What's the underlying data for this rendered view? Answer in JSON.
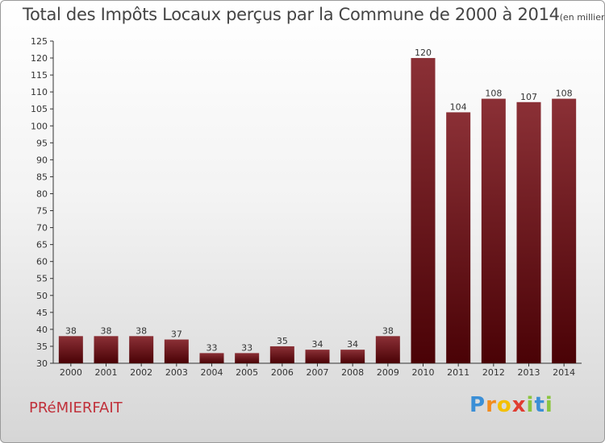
{
  "title": "Total des Impôts Locaux perçus par la Commune de 2000 à 2014",
  "title_unit": "(en milliers d'€)",
  "commune": "PRéMIERFAIT",
  "logo": [
    "P",
    "r",
    "o",
    "x",
    "i",
    "t",
    "i"
  ],
  "colors": {
    "bar_top": "#8b3036",
    "bar_bottom": "#4a0206",
    "commune_text": "#c0303a"
  },
  "chart_data": {
    "type": "bar",
    "title": "Total des Impôts Locaux perçus par la Commune de 2000 à 2014",
    "xlabel": "",
    "ylabel": "",
    "categories": [
      "2000",
      "2001",
      "2002",
      "2003",
      "2004",
      "2005",
      "2006",
      "2007",
      "2008",
      "2009",
      "2010",
      "2011",
      "2012",
      "2013",
      "2014"
    ],
    "values": [
      38,
      38,
      38,
      37,
      33,
      33,
      35,
      34,
      34,
      38,
      120,
      104,
      108,
      107,
      108
    ],
    "ylim": [
      30,
      125
    ],
    "yticks": [
      30,
      35,
      40,
      45,
      50,
      55,
      60,
      65,
      70,
      75,
      80,
      85,
      90,
      95,
      100,
      105,
      110,
      115,
      120,
      125
    ],
    "grid": false,
    "legend": "none"
  }
}
